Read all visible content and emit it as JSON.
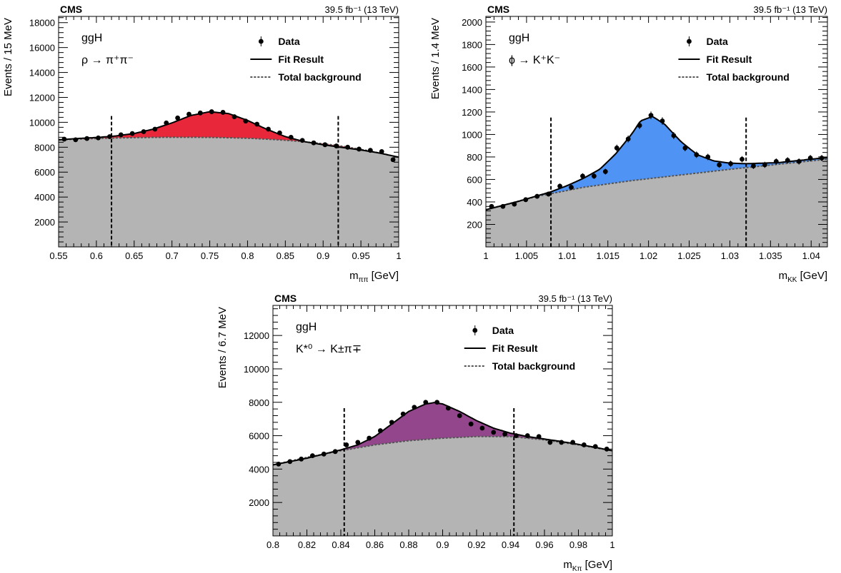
{
  "chart_data": [
    {
      "type": "scatter",
      "header_left": "CMS",
      "header_right": "39.5 fb⁻¹ (13 TeV)",
      "channel": "ggH",
      "decay": "ρ → π⁺π⁻",
      "xlabel": "mππ [GeV]",
      "ylabel": "Events / 15 MeV",
      "xlim": [
        0.55,
        1.0
      ],
      "ylim": [
        0,
        18500
      ],
      "x_ticks": [
        0.55,
        0.6,
        0.65,
        0.7,
        0.75,
        0.8,
        0.85,
        0.9,
        0.95,
        1
      ],
      "y_ticks": [
        2000,
        4000,
        6000,
        8000,
        10000,
        12000,
        14000,
        16000,
        18000
      ],
      "signal_color": "#e8283a",
      "window": [
        0.62,
        0.92
      ],
      "legend_position": "top-right",
      "legend": [
        "Data",
        "Fit Result",
        "Total background"
      ],
      "series": [
        {
          "name": "Data",
          "x": [
            0.5575,
            0.5725,
            0.5875,
            0.6025,
            0.6175,
            0.6325,
            0.6475,
            0.6625,
            0.6775,
            0.6925,
            0.7075,
            0.7225,
            0.7375,
            0.7525,
            0.7675,
            0.7825,
            0.7975,
            0.8125,
            0.8275,
            0.8425,
            0.8575,
            0.8725,
            0.8875,
            0.9025,
            0.9175,
            0.9325,
            0.9475,
            0.9625,
            0.9775,
            0.9925
          ],
          "y": [
            8650,
            8600,
            8700,
            8750,
            8850,
            9000,
            9100,
            9250,
            9450,
            9950,
            10350,
            10650,
            10750,
            10850,
            10800,
            10450,
            10100,
            9850,
            9450,
            9150,
            8800,
            8550,
            8350,
            8200,
            8100,
            8000,
            7850,
            7750,
            7650,
            7000
          ]
        },
        {
          "name": "Fit Result",
          "x": [
            0.55,
            0.575,
            0.6,
            0.625,
            0.65,
            0.675,
            0.7,
            0.725,
            0.75,
            0.775,
            0.8,
            0.825,
            0.85,
            0.875,
            0.9,
            0.925,
            0.95,
            0.975,
            1.0
          ],
          "y": [
            8600,
            8700,
            8780,
            8900,
            9100,
            9450,
            9950,
            10550,
            10850,
            10700,
            10150,
            9450,
            8850,
            8450,
            8200,
            7980,
            7780,
            7530,
            7200
          ]
        },
        {
          "name": "Total background",
          "x": [
            0.55,
            0.575,
            0.6,
            0.625,
            0.65,
            0.675,
            0.7,
            0.725,
            0.75,
            0.775,
            0.8,
            0.825,
            0.85,
            0.875,
            0.9,
            0.925,
            0.95,
            0.975,
            1.0
          ],
          "y": [
            8600,
            8650,
            8700,
            8740,
            8770,
            8790,
            8800,
            8800,
            8790,
            8760,
            8720,
            8650,
            8560,
            8440,
            8280,
            8080,
            7830,
            7530,
            7200
          ]
        }
      ]
    },
    {
      "type": "scatter",
      "header_left": "CMS",
      "header_right": "39.5 fb⁻¹ (13 TeV)",
      "channel": "ggH",
      "decay": "ϕ → K⁺K⁻",
      "xlabel": "mKK [GeV]",
      "ylabel": "Events / 1.4 MeV",
      "xlim": [
        1.0,
        1.042
      ],
      "ylim": [
        0,
        2050
      ],
      "x_ticks": [
        1,
        1.005,
        1.01,
        1.015,
        1.02,
        1.025,
        1.03,
        1.035,
        1.04
      ],
      "x_tick_labels": [
        "1",
        "1.005",
        "1.01",
        "1.015",
        "1.02",
        "1.025",
        "1.03",
        "1.035",
        "1.04"
      ],
      "y_ticks": [
        200,
        400,
        600,
        800,
        1000,
        1200,
        1400,
        1600,
        1800,
        2000
      ],
      "signal_color": "#4f93f5",
      "window": [
        1.008,
        1.032
      ],
      "legend_position": "top-right",
      "legend": [
        "Data",
        "Fit Result",
        "Total background"
      ],
      "series": [
        {
          "name": "Data",
          "x": [
            1.0007,
            1.0021,
            1.0035,
            1.0049,
            1.0063,
            1.0077,
            1.0091,
            1.0105,
            1.0119,
            1.0133,
            1.0147,
            1.0161,
            1.0175,
            1.0189,
            1.0203,
            1.0217,
            1.0231,
            1.0245,
            1.0259,
            1.0273,
            1.0287,
            1.0301,
            1.0315,
            1.0329,
            1.0343,
            1.0357,
            1.0371,
            1.0385,
            1.0399,
            1.0413
          ],
          "y": [
            360,
            360,
            380,
            420,
            450,
            470,
            540,
            530,
            630,
            630,
            670,
            880,
            960,
            1080,
            1170,
            1120,
            990,
            880,
            820,
            800,
            730,
            740,
            780,
            720,
            730,
            760,
            770,
            760,
            790,
            790
          ]
        },
        {
          "name": "Fit Result",
          "x": [
            1.0,
            1.004,
            1.008,
            1.01,
            1.012,
            1.014,
            1.016,
            1.018,
            1.019,
            1.0205,
            1.022,
            1.024,
            1.026,
            1.028,
            1.03,
            1.032,
            1.036,
            1.042
          ],
          "y": [
            330,
            405,
            490,
            545,
            610,
            690,
            830,
            1010,
            1120,
            1160,
            1090,
            935,
            820,
            765,
            745,
            740,
            750,
            795
          ]
        },
        {
          "name": "Total background",
          "x": [
            1.0,
            1.006,
            1.012,
            1.018,
            1.024,
            1.03,
            1.036,
            1.042
          ],
          "y": [
            330,
            445,
            530,
            590,
            640,
            690,
            735,
            780
          ]
        }
      ]
    },
    {
      "type": "scatter",
      "header_left": "CMS",
      "header_right": "39.5 fb⁻¹ (13 TeV)",
      "channel": "ggH",
      "decay": "K*⁰ → K±π∓",
      "xlabel": "mKπ [GeV]",
      "ylabel": "Events / 6.7 MeV",
      "xlim": [
        0.8,
        1.0
      ],
      "ylim": [
        0,
        13800
      ],
      "x_ticks": [
        0.8,
        0.82,
        0.84,
        0.86,
        0.88,
        0.9,
        0.92,
        0.94,
        0.96,
        0.98,
        1
      ],
      "y_ticks": [
        2000,
        4000,
        6000,
        8000,
        10000,
        12000
      ],
      "signal_color": "#93468c",
      "window": [
        0.842,
        0.942
      ],
      "legend_position": "top-right",
      "legend": [
        "Data",
        "Fit Result",
        "Total background"
      ],
      "series": [
        {
          "name": "Data",
          "x": [
            0.8033,
            0.81,
            0.8167,
            0.8233,
            0.83,
            0.8367,
            0.8433,
            0.85,
            0.8567,
            0.8633,
            0.87,
            0.8767,
            0.8833,
            0.89,
            0.8967,
            0.9033,
            0.91,
            0.9167,
            0.9233,
            0.93,
            0.9367,
            0.9433,
            0.95,
            0.9567,
            0.9633,
            0.97,
            0.9767,
            0.9833,
            0.99,
            0.9967
          ],
          "y": [
            4300,
            4450,
            4600,
            4800,
            4900,
            5050,
            5450,
            5600,
            5850,
            6300,
            6800,
            7300,
            7700,
            8000,
            8000,
            7650,
            7200,
            6700,
            6450,
            6200,
            6100,
            6000,
            6000,
            5950,
            5600,
            5600,
            5600,
            5450,
            5350,
            5200
          ]
        },
        {
          "name": "Fit Result",
          "x": [
            0.8,
            0.81,
            0.82,
            0.83,
            0.84,
            0.85,
            0.86,
            0.87,
            0.88,
            0.89,
            0.895,
            0.9,
            0.91,
            0.92,
            0.93,
            0.94,
            0.95,
            0.96,
            0.97,
            0.98,
            0.99,
            1.0
          ],
          "y": [
            4250,
            4450,
            4650,
            4900,
            5150,
            5450,
            5950,
            6700,
            7450,
            7900,
            7980,
            7900,
            7450,
            6900,
            6450,
            6150,
            5950,
            5800,
            5650,
            5480,
            5300,
            5100
          ]
        },
        {
          "name": "Total background",
          "x": [
            0.8,
            0.82,
            0.84,
            0.86,
            0.88,
            0.9,
            0.92,
            0.94,
            0.96,
            0.98,
            1.0
          ],
          "y": [
            4250,
            4700,
            5100,
            5450,
            5700,
            5850,
            5950,
            5950,
            5750,
            5450,
            5100
          ]
        }
      ]
    }
  ]
}
